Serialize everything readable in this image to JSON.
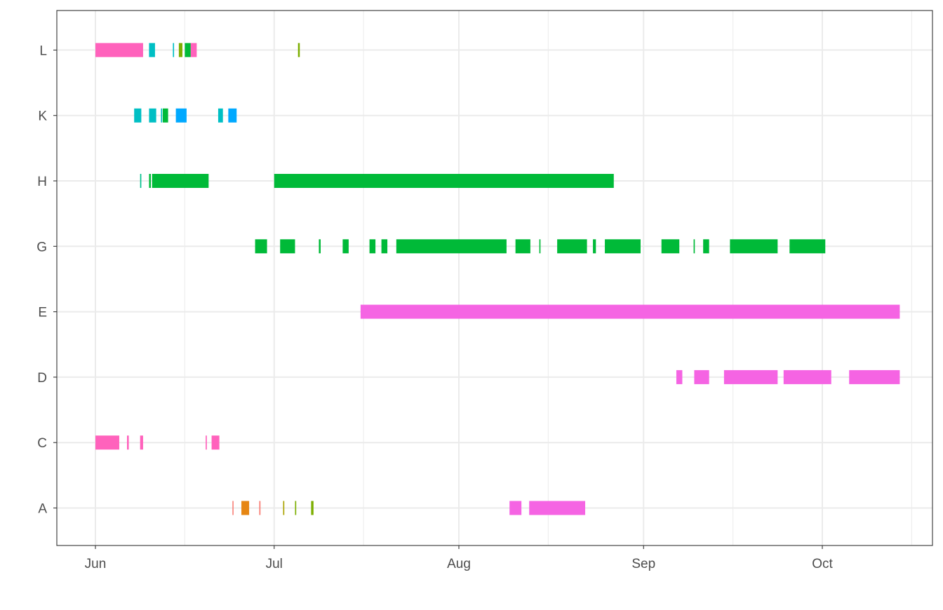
{
  "chart_data": {
    "type": "timeline",
    "title": "",
    "xlabel": "",
    "ylabel": "",
    "categories": [
      "A",
      "C",
      "D",
      "E",
      "G",
      "H",
      "K",
      "L"
    ],
    "x_ticks": [
      {
        "date": "2021-06-01",
        "label": "Jun"
      },
      {
        "date": "2021-07-01",
        "label": "Jul"
      },
      {
        "date": "2021-08-01",
        "label": "Aug"
      },
      {
        "date": "2021-09-01",
        "label": "Sep"
      },
      {
        "date": "2021-10-01",
        "label": "Oct"
      }
    ],
    "x_minor_ticks": [
      "2021-06-16",
      "2021-07-16",
      "2021-08-16",
      "2021-09-16",
      "2021-10-16"
    ],
    "xlim": [
      "2021-05-26",
      "2021-10-19"
    ],
    "grid": true,
    "legend": "none",
    "colors": {
      "pink": "#FF62BC",
      "magenta": "#F564E3",
      "teal": "#00BFC4",
      "green": "#00BA38",
      "emerald": "#00C08B",
      "blue": "#00A9FF",
      "orange": "#F8766D",
      "olive": "#7CAE00",
      "amber": "#E68613",
      "ochre": "#ABA300"
    },
    "segments": [
      {
        "category": "L",
        "start": "2021-06-01",
        "end": "2021-06-09",
        "color": "pink"
      },
      {
        "category": "L",
        "start": "2021-06-10",
        "end": "2021-06-11",
        "color": "teal"
      },
      {
        "category": "L",
        "start": "2021-06-14",
        "end": "2021-06-14.2",
        "color": "teal"
      },
      {
        "category": "L",
        "start": "2021-06-15",
        "end": "2021-06-15.6",
        "color": "olive"
      },
      {
        "category": "L",
        "start": "2021-06-16",
        "end": "2021-06-17",
        "color": "green"
      },
      {
        "category": "L",
        "start": "2021-06-17",
        "end": "2021-06-18",
        "color": "pink"
      },
      {
        "category": "L",
        "start": "2021-07-05",
        "end": "2021-07-05.3",
        "color": "olive"
      },
      {
        "category": "K",
        "start": "2021-06-07.5",
        "end": "2021-06-08.7",
        "color": "teal"
      },
      {
        "category": "K",
        "start": "2021-06-10",
        "end": "2021-06-11.2",
        "color": "teal"
      },
      {
        "category": "K",
        "start": "2021-06-12",
        "end": "2021-06-12.2",
        "color": "teal"
      },
      {
        "category": "K",
        "start": "2021-06-12.3",
        "end": "2021-06-13.2",
        "color": "green"
      },
      {
        "category": "K",
        "start": "2021-06-14.5",
        "end": "2021-06-16.3",
        "color": "blue"
      },
      {
        "category": "K",
        "start": "2021-06-21.6",
        "end": "2021-06-22.4",
        "color": "teal"
      },
      {
        "category": "K",
        "start": "2021-06-23.3",
        "end": "2021-06-24.7",
        "color": "blue"
      },
      {
        "category": "H",
        "start": "2021-06-08.5",
        "end": "2021-06-08.7",
        "color": "emerald"
      },
      {
        "category": "H",
        "start": "2021-06-10",
        "end": "2021-06-10.3",
        "color": "green"
      },
      {
        "category": "H",
        "start": "2021-06-10.5",
        "end": "2021-06-20",
        "color": "green"
      },
      {
        "category": "H",
        "start": "2021-07-01",
        "end": "2021-08-27",
        "color": "green"
      },
      {
        "category": "G",
        "start": "2021-06-27.8",
        "end": "2021-06-29.8",
        "color": "green"
      },
      {
        "category": "G",
        "start": "2021-07-02",
        "end": "2021-07-04.5",
        "color": "green"
      },
      {
        "category": "G",
        "start": "2021-07-08.5",
        "end": "2021-07-08.8",
        "color": "green"
      },
      {
        "category": "G",
        "start": "2021-07-12.5",
        "end": "2021-07-13.5",
        "color": "green"
      },
      {
        "category": "G",
        "start": "2021-07-17",
        "end": "2021-07-18",
        "color": "green"
      },
      {
        "category": "G",
        "start": "2021-07-19",
        "end": "2021-07-20",
        "color": "green"
      },
      {
        "category": "G",
        "start": "2021-07-21.5",
        "end": "2021-08-09",
        "color": "green"
      },
      {
        "category": "G",
        "start": "2021-08-10.5",
        "end": "2021-08-13",
        "color": "green"
      },
      {
        "category": "G",
        "start": "2021-08-14.5",
        "end": "2021-08-14.7",
        "color": "green"
      },
      {
        "category": "G",
        "start": "2021-08-17.5",
        "end": "2021-08-22.5",
        "color": "green"
      },
      {
        "category": "G",
        "start": "2021-08-23.5",
        "end": "2021-08-24",
        "color": "green"
      },
      {
        "category": "G",
        "start": "2021-08-25.5",
        "end": "2021-08-31.5",
        "color": "green"
      },
      {
        "category": "G",
        "start": "2021-09-04",
        "end": "2021-09-07",
        "color": "green"
      },
      {
        "category": "G",
        "start": "2021-09-09.4",
        "end": "2021-09-09.6",
        "color": "green"
      },
      {
        "category": "G",
        "start": "2021-09-11",
        "end": "2021-09-12",
        "color": "green"
      },
      {
        "category": "G",
        "start": "2021-09-15.5",
        "end": "2021-09-23.5",
        "color": "green"
      },
      {
        "category": "G",
        "start": "2021-09-25.5",
        "end": "2021-10-01.5",
        "color": "green"
      },
      {
        "category": "E",
        "start": "2021-07-15.5",
        "end": "2021-10-14",
        "color": "magenta"
      },
      {
        "category": "D",
        "start": "2021-09-06.5",
        "end": "2021-09-07.5",
        "color": "magenta"
      },
      {
        "category": "D",
        "start": "2021-09-09.5",
        "end": "2021-09-12",
        "color": "magenta"
      },
      {
        "category": "D",
        "start": "2021-09-14.5",
        "end": "2021-09-23.5",
        "color": "magenta"
      },
      {
        "category": "D",
        "start": "2021-09-24.5",
        "end": "2021-10-02.5",
        "color": "magenta"
      },
      {
        "category": "D",
        "start": "2021-10-05.5",
        "end": "2021-10-14",
        "color": "magenta"
      },
      {
        "category": "C",
        "start": "2021-06-01",
        "end": "2021-06-05",
        "color": "pink"
      },
      {
        "category": "C",
        "start": "2021-06-06.3",
        "end": "2021-06-06.6",
        "color": "pink"
      },
      {
        "category": "C",
        "start": "2021-06-08.5",
        "end": "2021-06-09",
        "color": "pink"
      },
      {
        "category": "C",
        "start": "2021-06-19.5",
        "end": "2021-06-19.7",
        "color": "pink"
      },
      {
        "category": "C",
        "start": "2021-06-20.5",
        "end": "2021-06-21.8",
        "color": "pink"
      },
      {
        "category": "A",
        "start": "2021-06-24",
        "end": "2021-06-24.15",
        "color": "orange"
      },
      {
        "category": "A",
        "start": "2021-06-25.5",
        "end": "2021-06-26.8",
        "color": "amber"
      },
      {
        "category": "A",
        "start": "2021-06-28.5",
        "end": "2021-06-28.7",
        "color": "orange"
      },
      {
        "category": "A",
        "start": "2021-07-02.5",
        "end": "2021-07-02.7",
        "color": "ochre"
      },
      {
        "category": "A",
        "start": "2021-07-04.5",
        "end": "2021-07-04.7",
        "color": "olive"
      },
      {
        "category": "A",
        "start": "2021-07-07.2",
        "end": "2021-07-07.6",
        "color": "olive"
      },
      {
        "category": "A",
        "start": "2021-08-09.5",
        "end": "2021-08-11.5",
        "color": "magenta"
      },
      {
        "category": "A",
        "start": "2021-08-12.8",
        "end": "2021-08-22.2",
        "color": "magenta"
      }
    ]
  }
}
